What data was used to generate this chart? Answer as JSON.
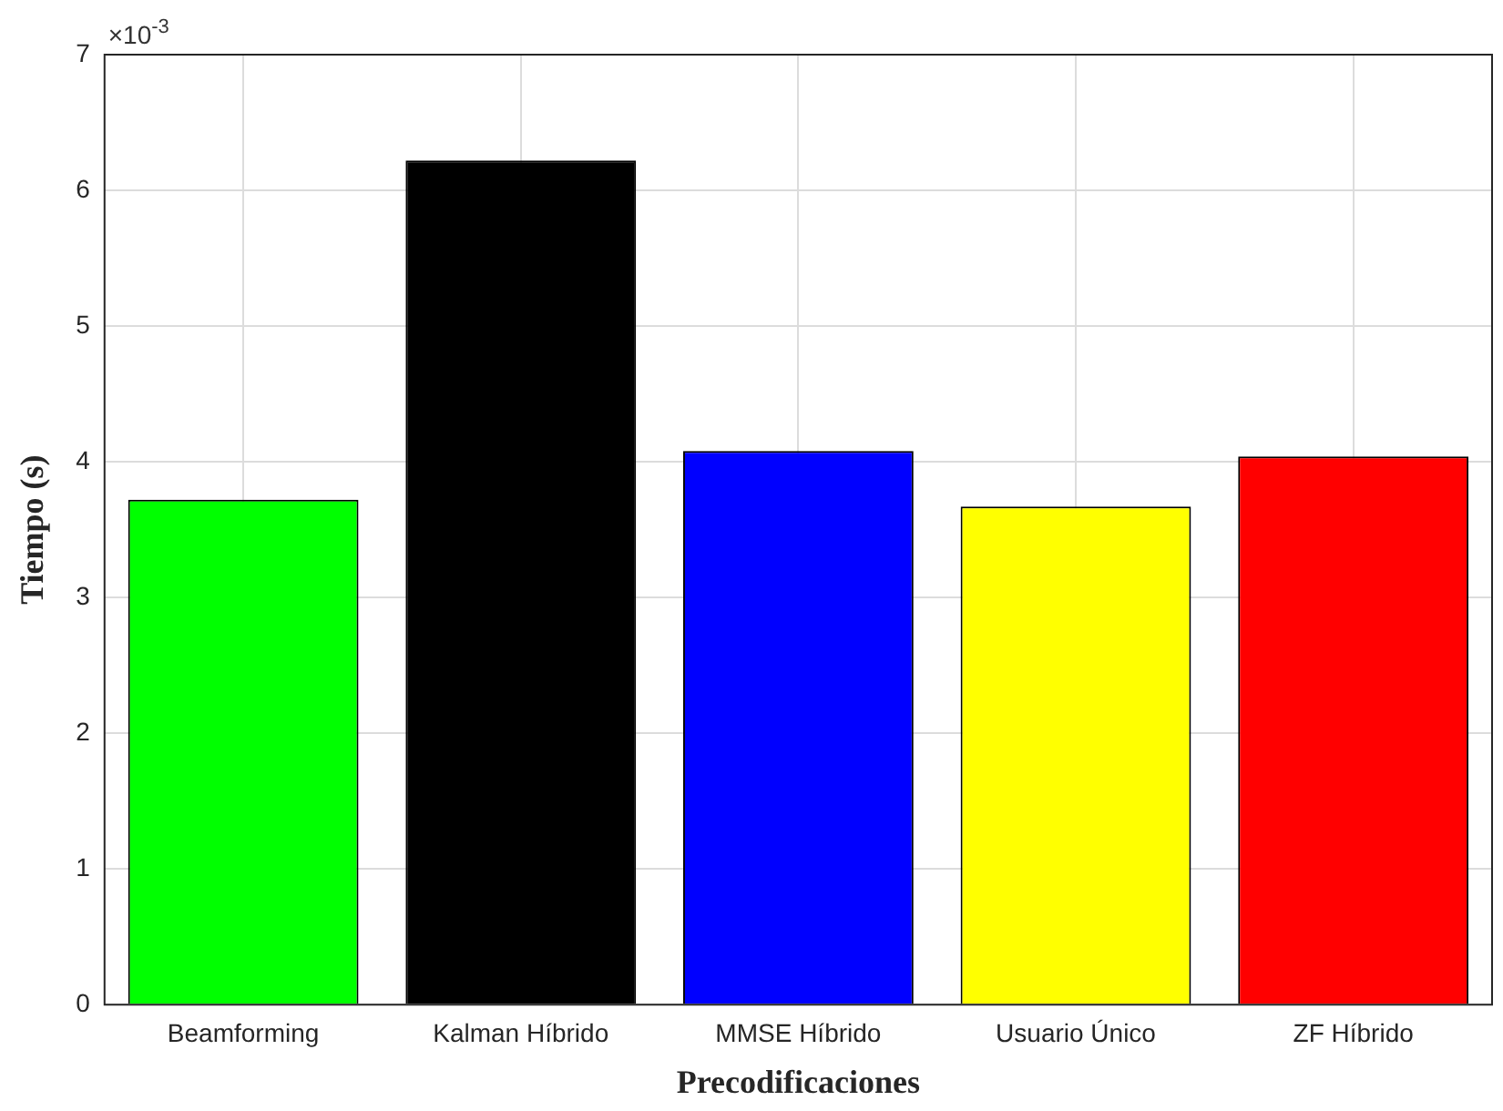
{
  "chart_data": {
    "type": "bar",
    "xlabel": "Precodificaciones",
    "ylabel": "Tiempo (s)",
    "categories": [
      "Beamforming",
      "Kalman Híbrido",
      "MMSE Híbrido",
      "Usuario Único",
      "ZF Híbrido"
    ],
    "values": [
      3.72,
      6.22,
      4.08,
      3.67,
      4.04
    ],
    "colors": [
      "#00ff00",
      "#000000",
      "#0000ff",
      "#ffff00",
      "#ff0000"
    ],
    "ylim": [
      0,
      7
    ],
    "yticks": [
      0,
      1,
      2,
      3,
      4,
      5,
      6,
      7
    ],
    "grid": true,
    "annotations": [
      "×10$^{-3}$"
    ]
  }
}
